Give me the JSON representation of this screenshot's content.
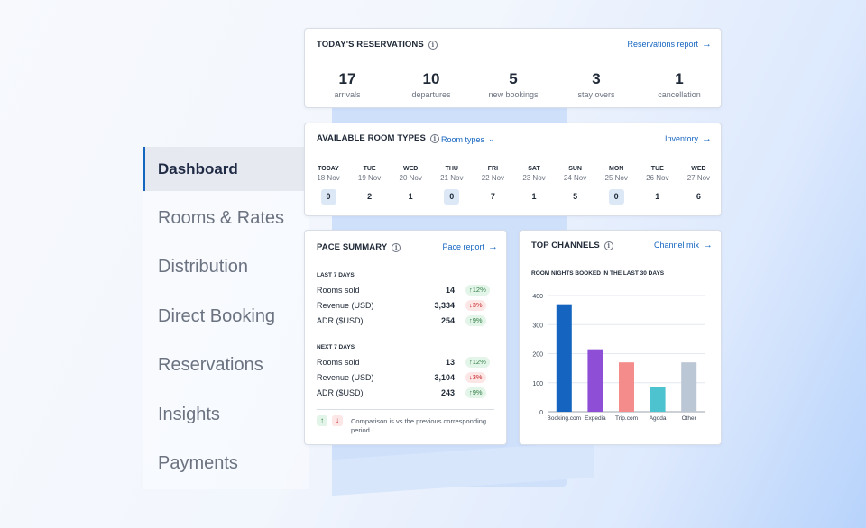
{
  "nav": {
    "items": [
      {
        "label": "Dashboard",
        "active": true
      },
      {
        "label": "Rooms & Rates"
      },
      {
        "label": "Distribution"
      },
      {
        "label": "Direct Booking"
      },
      {
        "label": "Reservations"
      },
      {
        "label": "Insights"
      },
      {
        "label": "Payments"
      }
    ]
  },
  "reservations": {
    "title": "TODAY'S RESERVATIONS",
    "link": "Reservations report",
    "stats": [
      {
        "value": "17",
        "label": "arrivals"
      },
      {
        "value": "10",
        "label": "departures"
      },
      {
        "value": "5",
        "label": "new bookings"
      },
      {
        "value": "3",
        "label": "stay overs"
      },
      {
        "value": "1",
        "label": "cancellation"
      }
    ]
  },
  "room_types": {
    "title": "AVAILABLE ROOM TYPES",
    "dropdown": "Room types",
    "link": "Inventory",
    "days": [
      {
        "name": "TODAY",
        "date": "18 Nov",
        "count": "0"
      },
      {
        "name": "TUE",
        "date": "19 Nov",
        "count": "2"
      },
      {
        "name": "WED",
        "date": "20 Nov",
        "count": "1"
      },
      {
        "name": "THU",
        "date": "21 Nov",
        "count": "0"
      },
      {
        "name": "FRI",
        "date": "22 Nov",
        "count": "7"
      },
      {
        "name": "SAT",
        "date": "23 Nov",
        "count": "1"
      },
      {
        "name": "SUN",
        "date": "24 Nov",
        "count": "5"
      },
      {
        "name": "MON",
        "date": "25 Nov",
        "count": "0"
      },
      {
        "name": "TUE",
        "date": "26 Nov",
        "count": "1"
      },
      {
        "name": "WED",
        "date": "27 Nov",
        "count": "6"
      }
    ]
  },
  "pace": {
    "title": "PACE SUMMARY",
    "link": "Pace report",
    "last7": {
      "heading": "LAST 7 DAYS",
      "rows": [
        {
          "label": "Rooms sold",
          "value": "14",
          "change": "12%",
          "dir": "up"
        },
        {
          "label": "Revenue (USD)",
          "value": "3,334",
          "change": "3%",
          "dir": "down"
        },
        {
          "label": "ADR ($USD)",
          "value": "254",
          "change": "9%",
          "dir": "up"
        }
      ]
    },
    "next7": {
      "heading": "NEXT 7 DAYS",
      "rows": [
        {
          "label": "Rooms sold",
          "value": "13",
          "change": "12%",
          "dir": "up"
        },
        {
          "label": "Revenue (USD)",
          "value": "3,104",
          "change": "3%",
          "dir": "down"
        },
        {
          "label": "ADR ($USD)",
          "value": "243",
          "change": "9%",
          "dir": "up"
        }
      ]
    },
    "footnote": "Comparison is vs the previous corresponding period",
    "up_arrow": "↑",
    "down_arrow": "↓"
  },
  "channels": {
    "title": "TOP CHANNELS",
    "link": "Channel mix",
    "subtitle": "ROOM NIGHTS BOOKED IN THE LAST 30 DAYS"
  },
  "chart_data": {
    "type": "bar",
    "title": "ROOM NIGHTS BOOKED IN THE LAST 30 DAYS",
    "categories": [
      "Booking.com",
      "Expedia",
      "Trip.com",
      "Agoda",
      "Other"
    ],
    "values": [
      370,
      215,
      170,
      85,
      170
    ],
    "colors": [
      "#1565c0",
      "#8e4fd6",
      "#f48c8c",
      "#4cc3cf",
      "#bcc7d6"
    ],
    "ylim": [
      0,
      400
    ],
    "yticks": [
      0,
      100,
      200,
      300,
      400
    ],
    "grid": true
  },
  "colors": {
    "accent": "#1565c0"
  }
}
